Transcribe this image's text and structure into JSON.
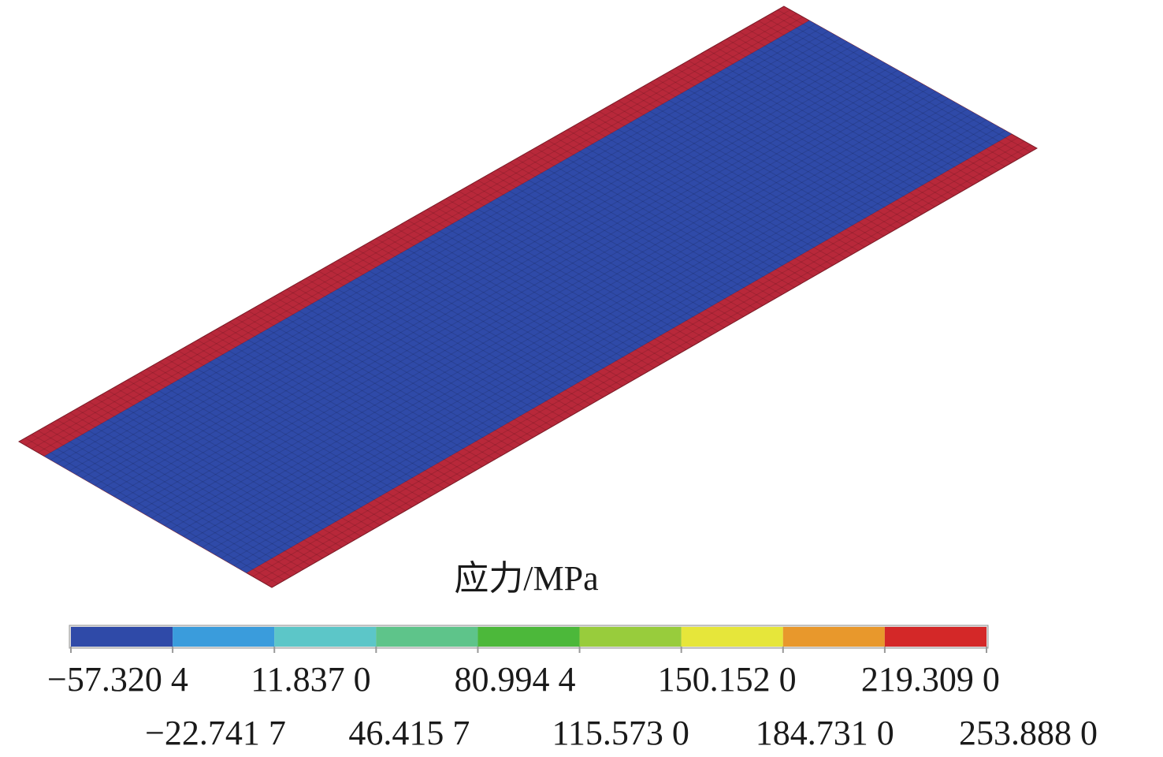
{
  "legend": {
    "title": "应力/MPa",
    "colors": [
      "#2f4aa8",
      "#3a9cdc",
      "#5cc6c8",
      "#5ec48a",
      "#4cb83a",
      "#98cc3c",
      "#e6e63a",
      "#e8982c",
      "#d42828"
    ],
    "ticks": [
      "−57.320 4",
      "−22.741 7",
      "11.837 0",
      "46.415 7",
      "80.994 4",
      "115.573 0",
      "150.152 0",
      "184.731 0",
      "219.309 0",
      "253.888 0"
    ]
  },
  "model": {
    "edge_color": "#b8283a",
    "core_color": "#2f4aa8"
  }
}
